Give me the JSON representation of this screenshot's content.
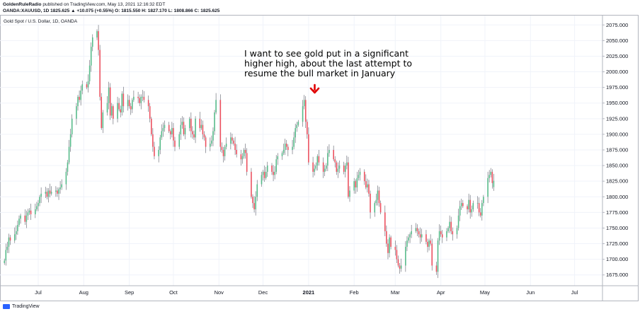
{
  "header": {
    "author": "GoldenRuleRadio",
    "published": "published on TradingView.com, May 13, 2021 12:16:32 EDT",
    "symbol_line": "OANDA:XAUUSD, 1D 1825.625 ▲ +10.075 (+0.55%) O: 1815.550 H: 1827.170 L: 1808.866 C: 1825.625"
  },
  "chart_title": "Gold Spot / U.S. Dollar, 1D, OANDA",
  "footer": {
    "brand": "TradingView"
  },
  "annotation": {
    "lines": [
      "I want to see gold put in a significant",
      "higher high, about the last attempt to",
      "resume the bull market in January"
    ],
    "arrow_color": "#e00000"
  },
  "colors": {
    "up": "#53b987",
    "down": "#eb4d5c",
    "wick": "#5d606b",
    "grid": "#f0f3fa"
  },
  "chart_data": {
    "type": "candlestick",
    "title": "Gold Spot / U.S. Dollar, 1D, OANDA",
    "ylim": [
      1660,
      2090
    ],
    "yticks": [
      1675,
      1700,
      1725,
      1750,
      1775,
      1800,
      1825,
      1850,
      1875,
      1900,
      1925,
      1950,
      1975,
      2000,
      2025,
      2050,
      2075
    ],
    "ytick_labels": [
      "1675.000",
      "1700.000",
      "1725.000",
      "1750.000",
      "1775.000",
      "1800.000",
      "1825.000",
      "1850.000",
      "1875.000",
      "1900.000",
      "1925.000",
      "1950.000",
      "1975.000",
      "2000.000",
      "2025.000",
      "2050.000",
      "2075.000"
    ],
    "xlim": [
      "2020-06-05",
      "2021-07-20"
    ],
    "xticks": [
      {
        "date": "2020-07-01",
        "label": "Jul"
      },
      {
        "date": "2020-08-01",
        "label": "Aug"
      },
      {
        "date": "2020-09-01",
        "label": "Sep"
      },
      {
        "date": "2020-10-01",
        "label": "Oct"
      },
      {
        "date": "2020-11-01",
        "label": "Nov"
      },
      {
        "date": "2020-12-01",
        "label": "Dec"
      },
      {
        "date": "2021-01-01",
        "label": "2021",
        "bold": true
      },
      {
        "date": "2021-02-01",
        "label": "Feb"
      },
      {
        "date": "2021-03-01",
        "label": "Mar"
      },
      {
        "date": "2021-04-01",
        "label": "Apr"
      },
      {
        "date": "2021-05-01",
        "label": "May"
      },
      {
        "date": "2021-06-01",
        "label": "Jun"
      },
      {
        "date": "2021-07-01",
        "label": "Jul"
      }
    ],
    "series": [
      {
        "name": "OANDA:XAUUSD",
        "start_date": "2020-06-08",
        "closes": [
          1698,
          1715,
          1720,
          1735,
          1730,
          1740,
          1745,
          1755,
          1765,
          1770,
          1760,
          1770,
          1775,
          1778,
          1772,
          1780,
          1785,
          1790,
          1800,
          1805,
          1808,
          1800,
          1810,
          1805,
          1808,
          1810,
          1805,
          1812,
          1815,
          1820,
          1840,
          1855,
          1880,
          1900,
          1925,
          1945,
          1960,
          1955,
          1970,
          1980,
          1975,
          1985,
          2010,
          2040,
          2055,
          2065,
          2035,
          1960,
          1910,
          1935,
          1950,
          1975,
          1930,
          1945,
          1925,
          1950,
          1940,
          1935,
          1965,
          1945,
          1955,
          1945,
          1940,
          1955,
          1960,
          1958,
          1950,
          1960,
          1960,
          1955,
          1945,
          1925,
          1900,
          1880,
          1865,
          1875,
          1895,
          1905,
          1910,
          1915,
          1905,
          1900,
          1910,
          1890,
          1880,
          1900,
          1915,
          1920,
          1900,
          1910,
          1925,
          1905,
          1900,
          1895,
          1925,
          1910,
          1915,
          1900,
          1895,
          1880,
          1885,
          1890,
          1905,
          1935,
          1955,
          1880,
          1875,
          1865,
          1880,
          1885,
          1895,
          1890,
          1885,
          1875,
          1868,
          1860,
          1865,
          1875,
          1870,
          1840,
          1800,
          1790,
          1780,
          1800,
          1820,
          1835,
          1840,
          1830,
          1840,
          1850,
          1840,
          1835,
          1840,
          1860,
          1865,
          1870,
          1875,
          1885,
          1880,
          1875,
          1880,
          1895,
          1910,
          1915,
          1920,
          1945,
          1955,
          1920,
          1900,
          1855,
          1840,
          1845,
          1850,
          1865,
          1855,
          1840,
          1845,
          1850,
          1870,
          1875,
          1860,
          1855,
          1840,
          1845,
          1850,
          1840,
          1850,
          1855,
          1800,
          1810,
          1825,
          1815,
          1830,
          1835,
          1840,
          1825,
          1815,
          1820,
          1805,
          1775,
          1790,
          1795,
          1810,
          1790,
          1775,
          1745,
          1725,
          1710,
          1735,
          1720,
          1715,
          1700,
          1690,
          1685,
          1690,
          1720,
          1730,
          1735,
          1740,
          1745,
          1750,
          1745,
          1740,
          1735,
          1740,
          1728,
          1720,
          1730,
          1725,
          1690,
          1680,
          1730,
          1745,
          1740,
          1735,
          1745,
          1750,
          1760,
          1745,
          1740,
          1750,
          1770,
          1785,
          1790,
          1785,
          1780,
          1795,
          1775,
          1780,
          1790,
          1790,
          1775,
          1770,
          1790,
          1800,
          1830,
          1835,
          1840,
          1822,
          1826
        ],
        "last": {
          "open": 1815.55,
          "high": 1827.17,
          "low": 1808.866,
          "close": 1825.625,
          "change": 10.075,
          "change_pct": 0.55
        }
      }
    ]
  }
}
